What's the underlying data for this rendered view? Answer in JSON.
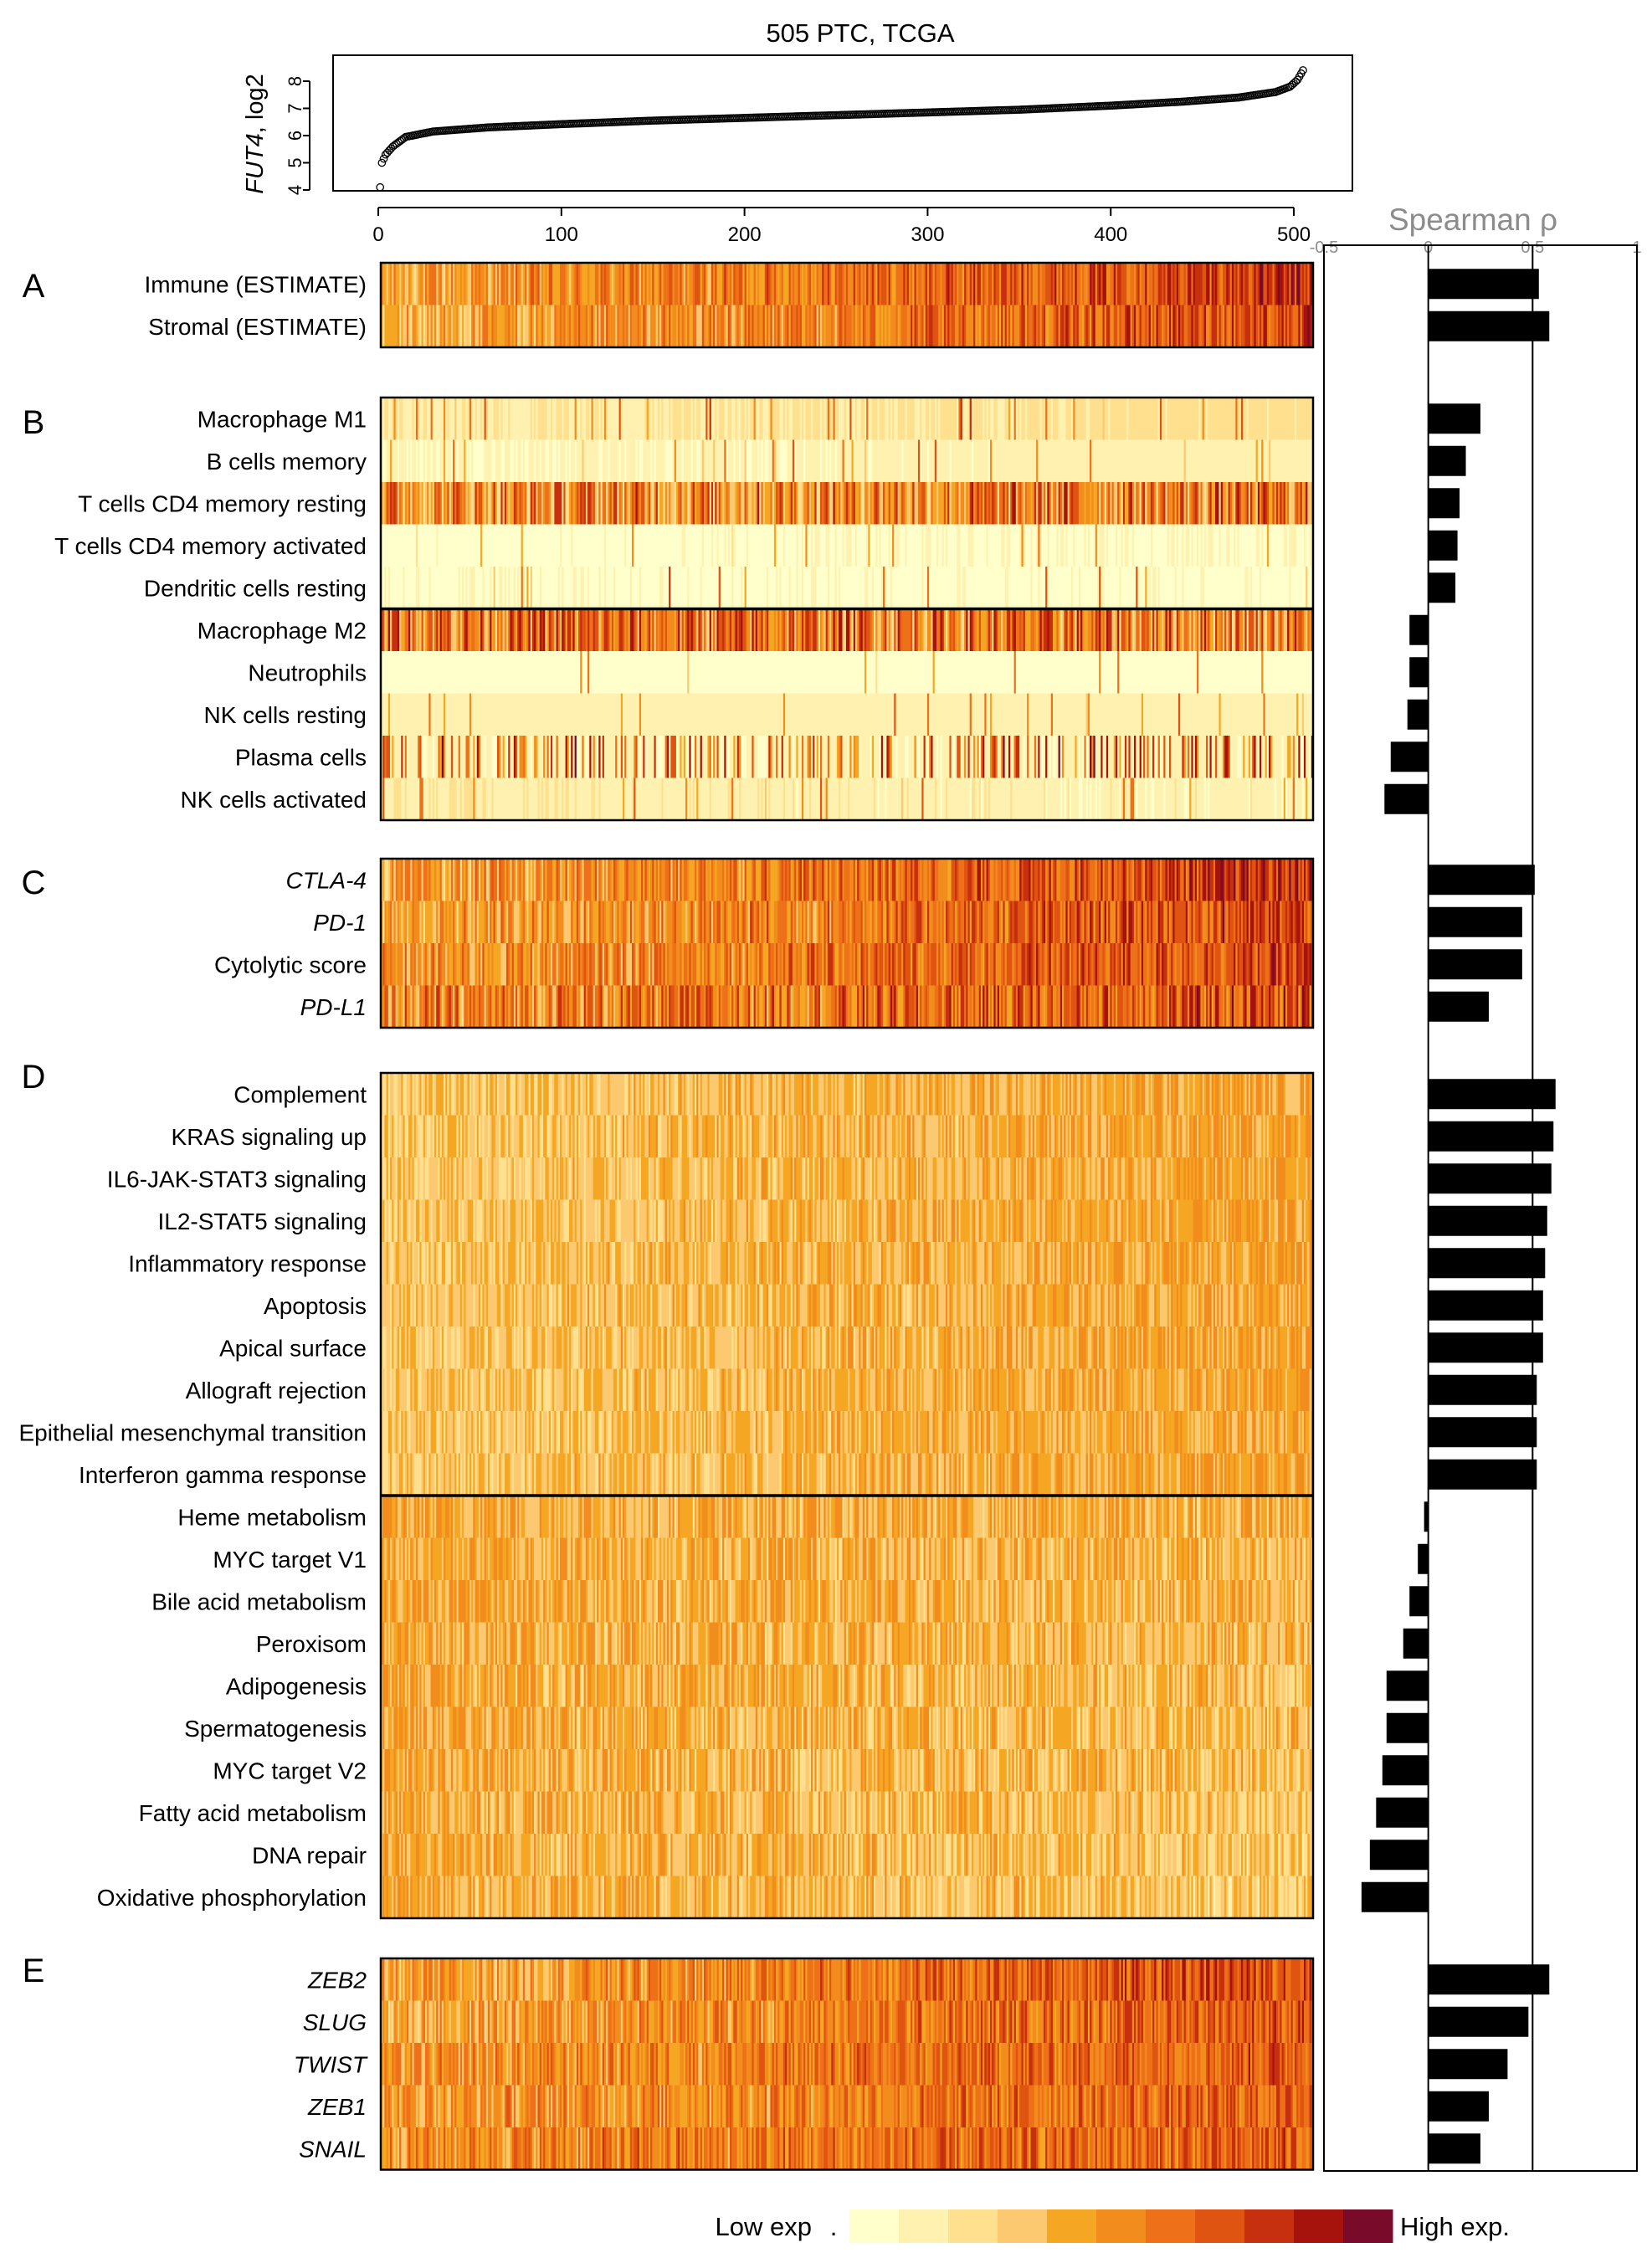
{
  "chart_data": [
    {
      "type": "scatter",
      "title": "505 PTC, TCGA",
      "ylabel_italic": "FUT4",
      "ylabel_rest": ", log2",
      "xlim": [
        0,
        505
      ],
      "ylim": [
        4,
        8.5
      ],
      "x_ticks": [
        "0",
        "100",
        "200",
        "300",
        "400",
        "500"
      ],
      "y_ticks": [
        "4",
        "5",
        "6",
        "7",
        "8"
      ],
      "n_points": 505,
      "sorted_curve": [
        [
          1,
          4.1
        ],
        [
          2,
          5.0
        ],
        [
          4,
          5.3
        ],
        [
          8,
          5.6
        ],
        [
          15,
          5.95
        ],
        [
          30,
          6.15
        ],
        [
          60,
          6.3
        ],
        [
          100,
          6.42
        ],
        [
          150,
          6.55
        ],
        [
          200,
          6.65
        ],
        [
          250,
          6.75
        ],
        [
          300,
          6.85
        ],
        [
          350,
          6.95
        ],
        [
          400,
          7.1
        ],
        [
          440,
          7.25
        ],
        [
          470,
          7.4
        ],
        [
          490,
          7.6
        ],
        [
          498,
          7.8
        ],
        [
          502,
          8.05
        ],
        [
          505,
          8.4
        ]
      ]
    },
    {
      "type": "heatmap",
      "description_panels": [
        {
          "letter": "A",
          "rows": [
            {
              "label": "Immune (ESTIMATE)",
              "italic": false,
              "rho": 0.53,
              "style": "gradient",
              "base": 4.0,
              "slope": 4.0,
              "noise": 2.2
            },
            {
              "label": "Stromal (ESTIMATE)",
              "italic": false,
              "rho": 0.58,
              "style": "gradient",
              "base": 3.5,
              "slope": 4.0,
              "noise": 2.2
            }
          ]
        },
        {
          "letter": "B",
          "divider_after": 5,
          "rows": [
            {
              "label": "Macrophage M1",
              "italic": false,
              "rho": 0.25,
              "style": "sparse",
              "base": 0.7,
              "slope": 0.8,
              "noise": 1.0
            },
            {
              "label": "B cells memory",
              "italic": false,
              "rho": 0.18,
              "style": "sparse",
              "base": 0.2,
              "slope": 0.4,
              "noise": 0.6
            },
            {
              "label": "T cells CD4 memory resting",
              "italic": false,
              "rho": 0.15,
              "style": "dense",
              "base": 5.0,
              "slope": 0.5,
              "noise": 3.5
            },
            {
              "label": "T cells CD4 memory activated",
              "italic": false,
              "rho": 0.14,
              "style": "sparse",
              "base": 0.1,
              "slope": 0.2,
              "noise": 0.4
            },
            {
              "label": "Dendritic cells resting",
              "italic": false,
              "rho": 0.13,
              "style": "rare",
              "base": 0.1,
              "slope": 0.2,
              "noise": 0.5
            },
            {
              "label": "Macrophage M2",
              "italic": false,
              "rho": -0.09,
              "style": "dense",
              "base": 6.0,
              "slope": -0.5,
              "noise": 3.5
            },
            {
              "label": "Neutrophils",
              "italic": false,
              "rho": -0.09,
              "style": "sparse",
              "base": 0.1,
              "slope": 0.0,
              "noise": 0.3
            },
            {
              "label": "NK cells resting",
              "italic": false,
              "rho": -0.1,
              "style": "sparse",
              "base": 0.5,
              "slope": 0.0,
              "noise": 1.0
            },
            {
              "label": "Plasma cells",
              "italic": false,
              "rho": -0.18,
              "style": "spiky",
              "base": 0.3,
              "slope": 0.0,
              "noise": 0.8
            },
            {
              "label": "NK cells activated",
              "italic": false,
              "rho": -0.21,
              "style": "sparse",
              "base": 0.6,
              "slope": -0.3,
              "noise": 1.2
            }
          ]
        },
        {
          "letter": "C",
          "rows": [
            {
              "label": "CTLA-4",
              "italic": true,
              "rho": 0.51,
              "style": "gradient",
              "base": 4.0,
              "slope": 4.0,
              "noise": 2.2
            },
            {
              "label": "PD-1",
              "italic": true,
              "rho": 0.45,
              "style": "gradient",
              "base": 4.0,
              "slope": 3.5,
              "noise": 2.4
            },
            {
              "label": "Cytolytic score",
              "italic": false,
              "rho": 0.45,
              "style": "gradient",
              "base": 4.5,
              "slope": 3.0,
              "noise": 2.2
            },
            {
              "label": "PD-L1",
              "italic": true,
              "rho": 0.29,
              "style": "gradient",
              "base": 5.0,
              "slope": 2.0,
              "noise": 2.8
            }
          ]
        },
        {
          "letter": "D",
          "divider_after": 10,
          "rows": [
            {
              "label": "Complement",
              "italic": false,
              "rho": 0.61,
              "style": "mid",
              "base": 3.0,
              "slope": 1.2,
              "noise": 1.3
            },
            {
              "label": "KRAS signaling up",
              "italic": false,
              "rho": 0.6,
              "style": "mid",
              "base": 3.0,
              "slope": 1.2,
              "noise": 1.3
            },
            {
              "label": "IL6-JAK-STAT3 signaling",
              "italic": false,
              "rho": 0.59,
              "style": "mid",
              "base": 3.0,
              "slope": 1.2,
              "noise": 1.3
            },
            {
              "label": "IL2-STAT5 signaling",
              "italic": false,
              "rho": 0.57,
              "style": "mid",
              "base": 3.0,
              "slope": 1.2,
              "noise": 1.3
            },
            {
              "label": "Inflammatory response",
              "italic": false,
              "rho": 0.56,
              "style": "mid",
              "base": 3.0,
              "slope": 1.2,
              "noise": 1.3
            },
            {
              "label": "Apoptosis",
              "italic": false,
              "rho": 0.55,
              "style": "mid",
              "base": 3.0,
              "slope": 1.2,
              "noise": 1.3
            },
            {
              "label": "Apical surface",
              "italic": false,
              "rho": 0.55,
              "style": "mid",
              "base": 3.0,
              "slope": 1.2,
              "noise": 1.3
            },
            {
              "label": "Allograft rejection",
              "italic": false,
              "rho": 0.52,
              "style": "mid",
              "base": 3.0,
              "slope": 1.2,
              "noise": 1.3
            },
            {
              "label": "Epithelial mesenchymal transition",
              "italic": false,
              "rho": 0.52,
              "style": "mid",
              "base": 3.0,
              "slope": 1.2,
              "noise": 1.3
            },
            {
              "label": "Interferon gamma response",
              "italic": false,
              "rho": 0.52,
              "style": "mid",
              "base": 3.0,
              "slope": 1.2,
              "noise": 1.3
            },
            {
              "label": "Heme metabolism",
              "italic": false,
              "rho": -0.02,
              "style": "mid",
              "base": 4.0,
              "slope": -0.3,
              "noise": 1.5
            },
            {
              "label": "MYC target V1",
              "italic": false,
              "rho": -0.05,
              "style": "mid",
              "base": 4.0,
              "slope": -0.4,
              "noise": 1.5
            },
            {
              "label": "Bile acid metabolism",
              "italic": false,
              "rho": -0.09,
              "style": "mid",
              "base": 4.0,
              "slope": -0.5,
              "noise": 1.5
            },
            {
              "label": "Peroxisom",
              "italic": false,
              "rho": -0.12,
              "style": "mid",
              "base": 4.0,
              "slope": -0.6,
              "noise": 1.5
            },
            {
              "label": "Adipogenesis",
              "italic": false,
              "rho": -0.2,
              "style": "mid",
              "base": 4.0,
              "slope": -0.8,
              "noise": 1.5
            },
            {
              "label": "Spermatogenesis",
              "italic": false,
              "rho": -0.2,
              "style": "mid",
              "base": 4.0,
              "slope": -0.8,
              "noise": 1.5
            },
            {
              "label": "MYC target V2",
              "italic": false,
              "rho": -0.22,
              "style": "mid",
              "base": 4.0,
              "slope": -0.9,
              "noise": 1.5
            },
            {
              "label": "Fatty acid metabolism",
              "italic": false,
              "rho": -0.25,
              "style": "mid",
              "base": 4.0,
              "slope": -1.0,
              "noise": 1.5
            },
            {
              "label": "DNA repair",
              "italic": false,
              "rho": -0.28,
              "style": "mid",
              "base": 4.0,
              "slope": -1.1,
              "noise": 1.5
            },
            {
              "label": "Oxidative phosphorylation",
              "italic": false,
              "rho": -0.32,
              "style": "mid",
              "base": 4.0,
              "slope": -1.2,
              "noise": 1.5
            }
          ]
        },
        {
          "letter": "E",
          "rows": [
            {
              "label": "ZEB2",
              "italic": true,
              "rho": 0.58,
              "style": "gradient",
              "base": 4.0,
              "slope": 3.5,
              "noise": 2.0
            },
            {
              "label": "SLUG",
              "italic": true,
              "rho": 0.48,
              "style": "gradient",
              "base": 4.0,
              "slope": 3.0,
              "noise": 2.0
            },
            {
              "label": "TWIST",
              "italic": true,
              "rho": 0.38,
              "style": "gradient",
              "base": 4.5,
              "slope": 2.5,
              "noise": 2.0
            },
            {
              "label": "ZEB1",
              "italic": true,
              "rho": 0.29,
              "style": "gradient",
              "base": 4.5,
              "slope": 2.0,
              "noise": 2.0
            },
            {
              "label": "SNAIL",
              "italic": true,
              "rho": 0.25,
              "style": "gradient",
              "base": 5.0,
              "slope": 1.5,
              "noise": 2.2
            }
          ]
        }
      ],
      "legend": {
        "low_label": "Low exp",
        "dot": ".",
        "high_label": "High exp.",
        "colors": [
          "#FFFFCC",
          "#FFF2B0",
          "#FFE08E",
          "#FCC970",
          "#F5A623",
          "#F28C1C",
          "#EE7018",
          "#E05412",
          "#C7300E",
          "#A6120C",
          "#7A0A2A"
        ]
      }
    },
    {
      "type": "bar",
      "title": "Spearman ρ",
      "xlim": [
        -0.5,
        1
      ],
      "x_ticks": [
        "-0.5",
        "0",
        "0.5",
        "1"
      ],
      "reference_lines": [
        0,
        0.5
      ],
      "bar_color": "#000000"
    }
  ]
}
